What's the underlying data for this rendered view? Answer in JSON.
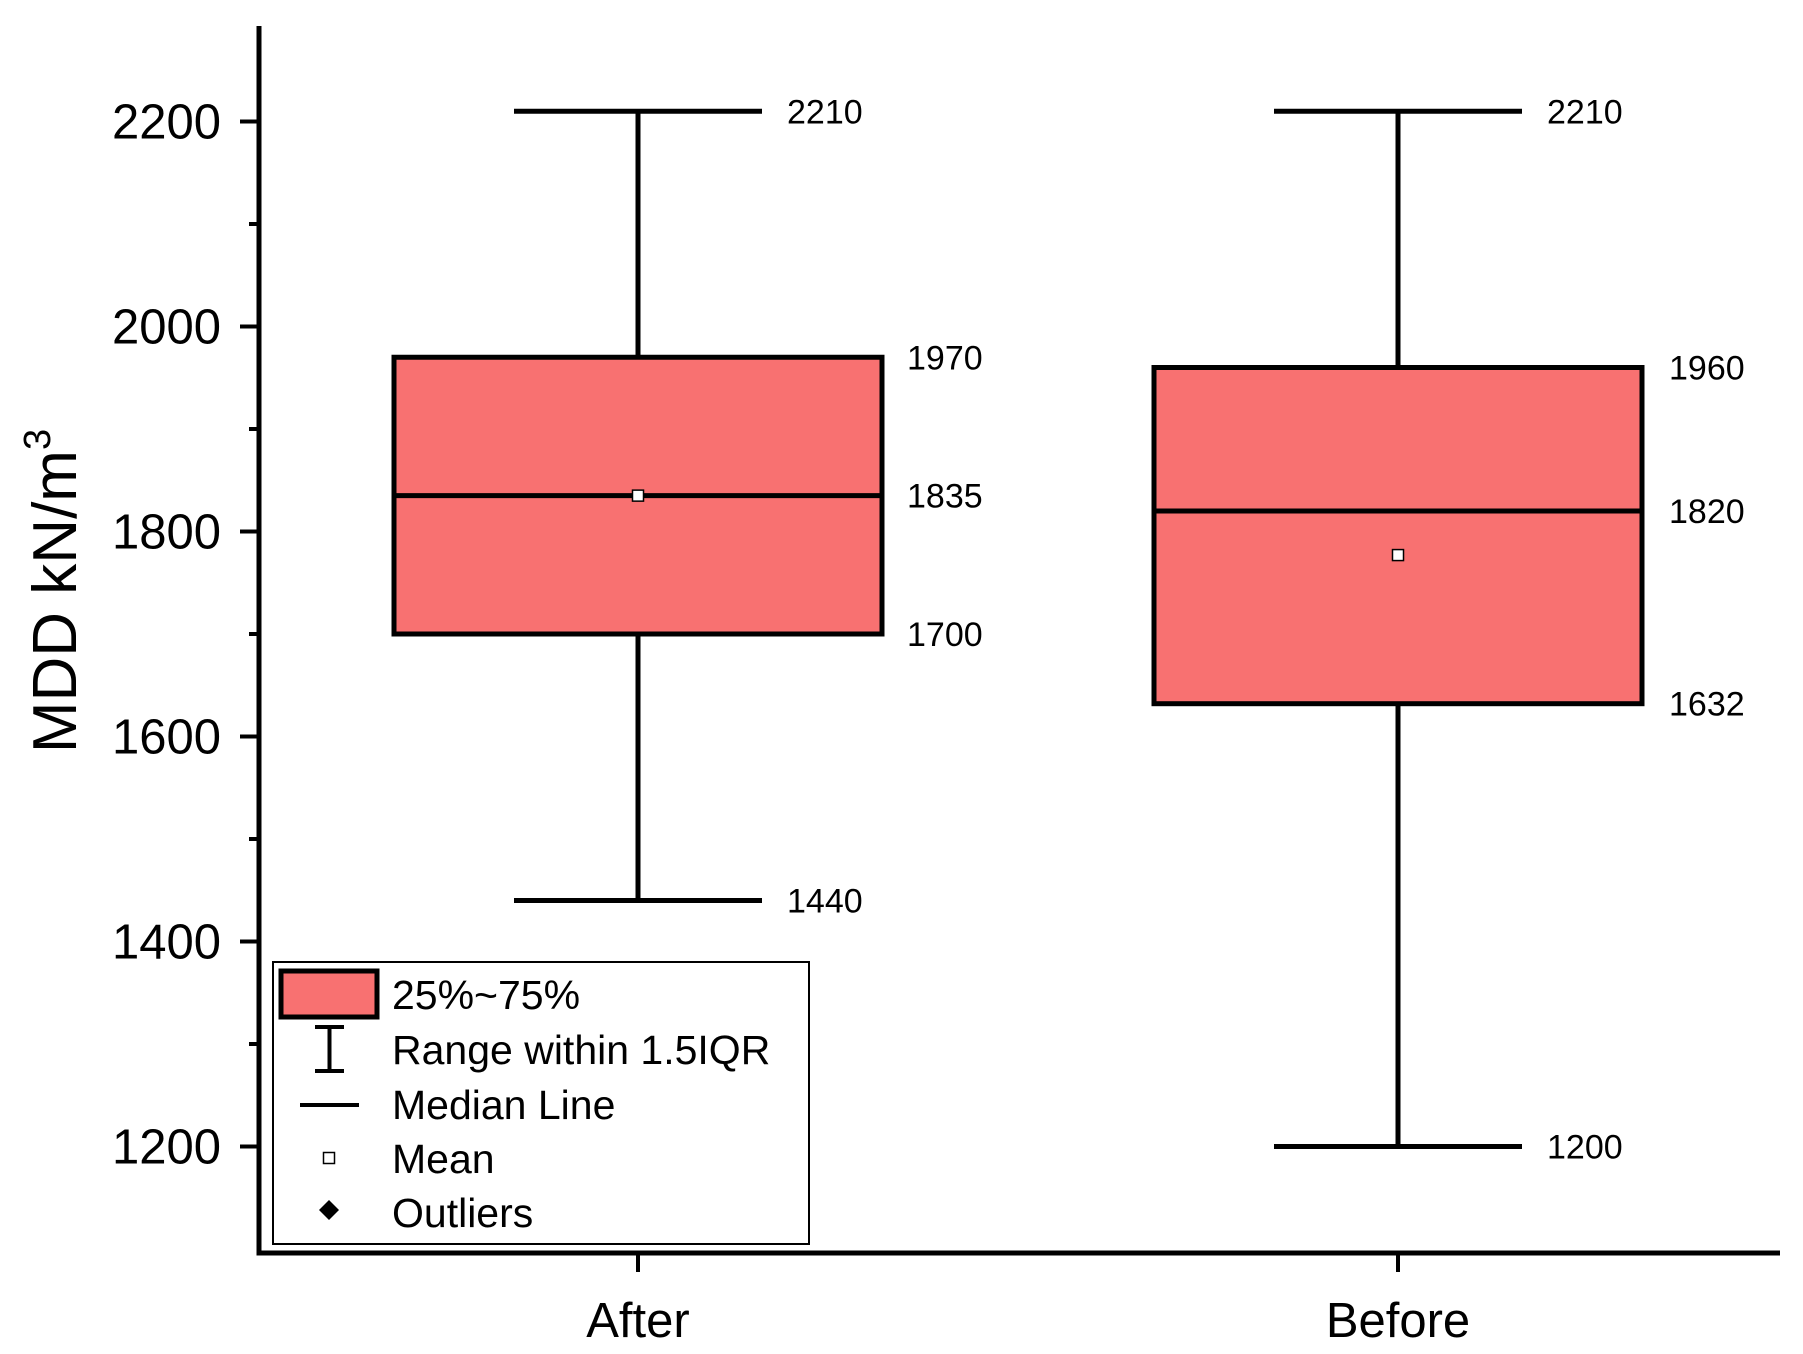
{
  "chart_data": {
    "type": "box",
    "categories": [
      "After",
      "Before"
    ],
    "boxes": [
      {
        "category": "After",
        "q1": 1700,
        "median": 1835,
        "q3": 1970,
        "whisker_low": 1440,
        "whisker_high": 2210,
        "mean": 1835
      },
      {
        "category": "Before",
        "q1": 1632,
        "median": 1820,
        "q3": 1960,
        "whisker_low": 1200,
        "whisker_high": 2210,
        "mean": 1777
      }
    ],
    "value_labels": [
      [
        "2210",
        "1970",
        "1835",
        "1700",
        "1440"
      ],
      [
        "2210",
        "1960",
        "1820",
        "1632",
        "1200"
      ]
    ],
    "ylabel": "MDD kN/m",
    "ylabel_superscript": "3",
    "xlabel": "",
    "ylim": [
      1100,
      2300
    ],
    "yticks": [
      1200,
      1400,
      1600,
      1800,
      2000,
      2200
    ],
    "ytick_labels": [
      "1200",
      "1400",
      "1600",
      "1800",
      "2000",
      "2200"
    ],
    "minor_ytick_step": 100,
    "box_color": "#f87171",
    "legend": {
      "position": "bottom-left",
      "items": [
        {
          "label": "25%~75%",
          "symbol": "box"
        },
        {
          "label": "Range within 1.5IQR",
          "symbol": "whisker"
        },
        {
          "label": "Median Line",
          "symbol": "line"
        },
        {
          "label": "Mean",
          "symbol": "open-square"
        },
        {
          "label": "Outliers",
          "symbol": "diamond"
        }
      ]
    }
  }
}
